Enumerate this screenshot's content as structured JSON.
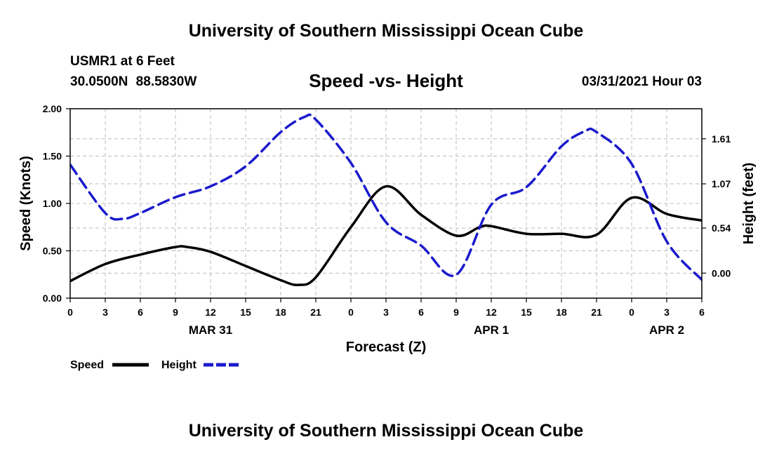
{
  "header": {
    "top_title": "University of Southern Mississippi Ocean Cube",
    "station": "USMR1 at 6 Feet",
    "coords": "30.0500N 88.5830W",
    "subtitle": "Speed -vs- Height",
    "datetime": "03/31/2021 Hour 03",
    "bottom_title": "University of Southern Mississippi Ocean Cube"
  },
  "colors": {
    "speed": "#000000",
    "height": "#1a1acc",
    "grid": "#bbbbbb"
  },
  "chart_data": {
    "type": "line",
    "title": "Speed -vs- Height",
    "xlabel": "Forecast (Z)",
    "ylabel": "Speed (Knots)",
    "y2label": "Height (feet)",
    "x_hours": [
      0,
      3,
      6,
      9,
      12,
      15,
      18,
      21,
      24,
      27,
      30,
      33,
      36,
      39,
      42,
      45,
      48,
      51,
      54
    ],
    "x_tick_labels": [
      "0",
      "3",
      "6",
      "9",
      "12",
      "15",
      "18",
      "21",
      "0",
      "3",
      "6",
      "9",
      "12",
      "15",
      "18",
      "21",
      "0",
      "3",
      "6"
    ],
    "date_labels": [
      {
        "label": "MAR 31",
        "hour": 12
      },
      {
        "label": "APR 1",
        "hour": 36
      },
      {
        "label": "APR 2",
        "hour": 51
      }
    ],
    "xlim": [
      0,
      54
    ],
    "ylim": [
      0,
      2.0
    ],
    "yticks": [
      0,
      0.5,
      1.0,
      1.5,
      2.0
    ],
    "ytick_labels": [
      "0.00",
      "0.50",
      "1.00",
      "1.50",
      "2.00"
    ],
    "y2lim": [
      -0.3,
      1.97
    ],
    "y2ticks": [
      0,
      0.54,
      1.07,
      1.61
    ],
    "y2tick_labels": [
      "0.00",
      "0.54",
      "1.07",
      "1.61"
    ],
    "grid": true,
    "legend": {
      "position": "bottom-left",
      "entries": [
        "Speed",
        "Height"
      ]
    },
    "series": [
      {
        "name": "Speed",
        "axis": "left",
        "style": "solid",
        "x": [
          0,
          3,
          6,
          9,
          10,
          12,
          15,
          18,
          19.5,
          21,
          24,
          27,
          30,
          33,
          35,
          36,
          39,
          42,
          45,
          48,
          51,
          54
        ],
        "values": [
          0.18,
          0.36,
          0.46,
          0.54,
          0.54,
          0.49,
          0.34,
          0.19,
          0.14,
          0.22,
          0.75,
          1.18,
          0.88,
          0.66,
          0.75,
          0.76,
          0.68,
          0.68,
          0.67,
          1.06,
          0.89,
          0.82
        ]
      },
      {
        "name": "Height",
        "axis": "right",
        "style": "dashed",
        "x": [
          0,
          3,
          4.5,
          6,
          9,
          12,
          15,
          18,
          20,
          21,
          24,
          27,
          30,
          33,
          36,
          39,
          42,
          44,
          45,
          48,
          51,
          54
        ],
        "values": [
          1.3,
          0.72,
          0.65,
          0.72,
          0.91,
          1.04,
          1.28,
          1.69,
          1.87,
          1.84,
          1.32,
          0.61,
          0.33,
          -0.02,
          0.82,
          1.03,
          1.52,
          1.7,
          1.69,
          1.31,
          0.38,
          -0.08
        ]
      }
    ]
  }
}
